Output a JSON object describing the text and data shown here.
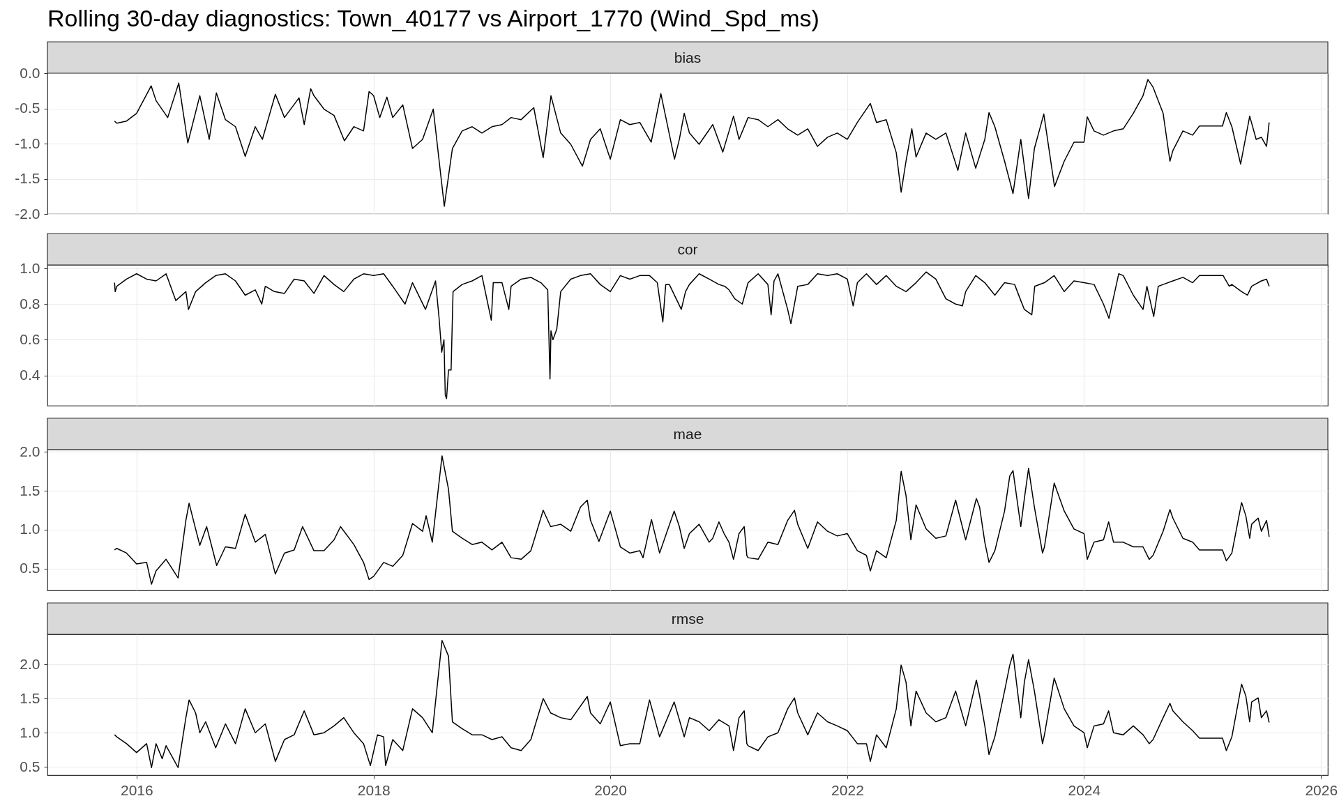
{
  "chart_data": [
    {
      "type": "line",
      "title": "Rolling 30-day diagnostics: Town_40177 vs Airport_1770 (Wind_Spd_ms)",
      "subtitle": "bias",
      "grid": true,
      "tick_labels": "y",
      "xlim": [
        "2015-04-01",
        "2026-01-22"
      ],
      "xticks": [
        "2016",
        "2018",
        "2020",
        "2022",
        "2024",
        "2026"
      ],
      "ylim": [
        -2.0,
        0.0
      ],
      "yticks": [
        {
          "value": -2.0,
          "label": "-2.0"
        },
        -1.5,
        {
          "value": -1.0,
          "label": "-1.0"
        },
        -0.5,
        {
          "value": 0.0,
          "label": "0.0"
        }
      ],
      "x": [
        "2015-10-25",
        "2015-11-01",
        "2015-12-01",
        "2016-01-01",
        "2016-02-15",
        "2016-03-01",
        "2016-04-06",
        "2016-05-10",
        "2016-06-07",
        "2016-07-14",
        "2016-08-12",
        "2016-09-03",
        "2016-10-01",
        "2016-11-01",
        "2016-12-01",
        "2017-01-01",
        "2017-01-23",
        "2017-03-04",
        "2017-04-01",
        "2017-05-16",
        "2017-06-01",
        "2017-06-21",
        "2017-07-01",
        "2017-08-01",
        "2017-09-01",
        "2017-10-03",
        "2017-11-01",
        "2017-12-01",
        "2017-12-18",
        "2018-01-01",
        "2018-01-20",
        "2018-02-11",
        "2018-03-01",
        "2018-04-01",
        "2018-05-01",
        "2018-06-01",
        "2018-07-04",
        "2018-08-07",
        "2018-09-01",
        "2018-10-01",
        "2018-11-01",
        "2018-12-01",
        "2019-01-01",
        "2019-02-01",
        "2019-03-01",
        "2019-04-01",
        "2019-05-10",
        "2019-06-08",
        "2019-07-02",
        "2019-08-01",
        "2019-09-01",
        "2019-10-07",
        "2019-11-01",
        "2019-12-01",
        "2020-01-01",
        "2020-02-01",
        "2020-03-01",
        "2020-04-01",
        "2020-05-06",
        "2020-06-05",
        "2020-07-17",
        "2020-08-01",
        "2020-08-16",
        "2020-09-01",
        "2020-10-01",
        "2020-11-12",
        "2020-12-13",
        "2021-01-15",
        "2021-02-01",
        "2021-03-01",
        "2021-04-01",
        "2021-05-01",
        "2021-06-01",
        "2021-07-01",
        "2021-08-01",
        "2021-09-01",
        "2021-10-01",
        "2021-11-01",
        "2021-12-01",
        "2022-01-01",
        "2022-02-01",
        "2022-03-13",
        "2022-04-01",
        "2022-05-01",
        "2022-06-01",
        "2022-06-16",
        "2022-07-01",
        "2022-07-19",
        "2022-08-01",
        "2022-09-01",
        "2022-10-01",
        "2022-11-01",
        "2022-12-08",
        "2023-01-01",
        "2023-02-01",
        "2023-03-01",
        "2023-03-14",
        "2023-04-01",
        "2023-05-01",
        "2023-05-27",
        "2023-06-20",
        "2023-07-14",
        "2023-08-01",
        "2023-08-30",
        "2023-10-02",
        "2023-11-01",
        "2023-12-01",
        "2024-01-01",
        "2024-01-11",
        "2024-02-01",
        "2024-03-01",
        "2024-04-01",
        "2024-05-01",
        "2024-06-01",
        "2024-07-01",
        "2024-07-16",
        "2024-08-01",
        "2024-09-01",
        "2024-09-22",
        "2024-10-01",
        "2024-11-01",
        "2024-12-01",
        "2024-12-22",
        "2025-03-03",
        "2025-03-15",
        "2025-04-01",
        "2025-04-28",
        "2025-05-26",
        "2025-06-15",
        "2025-07-01",
        "2025-07-17",
        "2025-07-25"
      ],
      "series": [
        {
          "color": "#000000",
          "values": [
            -0.68,
            -0.71,
            -0.68,
            -0.57,
            -0.18,
            -0.39,
            -0.63,
            -0.14,
            -0.99,
            -0.32,
            -0.94,
            -0.28,
            -0.66,
            -0.76,
            -1.18,
            -0.76,
            -0.94,
            -0.3,
            -0.63,
            -0.35,
            -0.73,
            -0.22,
            -0.32,
            -0.51,
            -0.6,
            -0.96,
            -0.76,
            -0.82,
            -0.26,
            -0.32,
            -0.63,
            -0.34,
            -0.63,
            -0.45,
            -1.07,
            -0.94,
            -0.51,
            -1.89,
            -1.07,
            -0.82,
            -0.76,
            -0.85,
            -0.76,
            -0.73,
            -0.63,
            -0.66,
            -0.49,
            -1.2,
            -0.32,
            -0.85,
            -1.01,
            -1.32,
            -0.94,
            -0.79,
            -1.22,
            -0.66,
            -0.73,
            -0.7,
            -0.98,
            -0.29,
            -1.22,
            -0.94,
            -0.57,
            -0.85,
            -1.01,
            -0.73,
            -1.12,
            -0.61,
            -0.94,
            -0.63,
            -0.66,
            -0.76,
            -0.66,
            -0.79,
            -0.88,
            -0.79,
            -1.04,
            -0.91,
            -0.85,
            -0.94,
            -0.7,
            -0.43,
            -0.7,
            -0.66,
            -1.13,
            -1.69,
            -1.25,
            -0.79,
            -1.19,
            -0.85,
            -0.94,
            -0.85,
            -1.38,
            -0.85,
            -1.35,
            -0.94,
            -0.56,
            -0.76,
            -1.25,
            -1.71,
            -0.94,
            -1.78,
            -1.07,
            -0.58,
            -1.61,
            -1.25,
            -0.98,
            -0.98,
            -0.62,
            -0.82,
            -0.88,
            -0.82,
            -0.79,
            -0.57,
            -0.32,
            -0.09,
            -0.2,
            -0.57,
            -1.25,
            -1.1,
            -0.82,
            -0.88,
            -0.75,
            -0.75,
            -0.56,
            -0.76,
            -1.29,
            -0.61,
            -0.94,
            -0.91,
            -1.04,
            -0.7
          ]
        }
      ]
    },
    {
      "type": "line",
      "subtitle": "cor",
      "grid": true,
      "tick_labels": "y",
      "xlim": [
        "2015-04-01",
        "2026-01-22"
      ],
      "xticks": [
        "2016",
        "2018",
        "2020",
        "2022",
        "2024",
        "2026"
      ],
      "ylim": [
        0.23,
        1.02
      ],
      "yticks": [
        0.4,
        0.6,
        0.8,
        {
          "value": 1.0,
          "label": "1.0"
        }
      ],
      "x": [
        "2015-10-25",
        "2015-10-27",
        "2015-11-01",
        "2015-12-01",
        "2016-01-01",
        "2016-02-01",
        "2016-03-01",
        "2016-04-01",
        "2016-05-01",
        "2016-06-01",
        "2016-06-09",
        "2016-07-01",
        "2016-08-01",
        "2016-09-01",
        "2016-10-01",
        "2016-11-01",
        "2016-12-01",
        "2017-01-01",
        "2017-01-21",
        "2017-02-01",
        "2017-03-01",
        "2017-04-01",
        "2017-05-01",
        "2017-06-01",
        "2017-07-01",
        "2017-08-01",
        "2017-09-01",
        "2017-10-01",
        "2017-11-01",
        "2017-12-01",
        "2018-01-01",
        "2018-02-01",
        "2018-03-01",
        "2018-04-08",
        "2018-05-01",
        "2018-06-10",
        "2018-07-11",
        "2018-07-22",
        "2018-07-30",
        "2018-08-06",
        "2018-08-10",
        "2018-08-14",
        "2018-08-20",
        "2018-08-28",
        "2018-09-03",
        "2018-10-01",
        "2018-11-01",
        "2018-12-01",
        "2018-12-30",
        "2019-01-05",
        "2019-02-01",
        "2019-02-22",
        "2019-03-01",
        "2019-04-01",
        "2019-05-01",
        "2019-06-01",
        "2019-06-22",
        "2019-06-29",
        "2019-07-02",
        "2019-07-08",
        "2019-07-20",
        "2019-08-01",
        "2019-09-01",
        "2019-10-01",
        "2019-11-01",
        "2019-12-01",
        "2020-01-01",
        "2020-02-01",
        "2020-03-01",
        "2020-04-01",
        "2020-05-01",
        "2020-05-25",
        "2020-06-11",
        "2020-06-20",
        "2020-07-01",
        "2020-08-07",
        "2020-08-20",
        "2020-09-01",
        "2020-10-01",
        "2020-11-01",
        "2020-12-01",
        "2020-12-19",
        "2021-01-01",
        "2021-01-19",
        "2021-02-11",
        "2021-03-01",
        "2021-04-01",
        "2021-05-01",
        "2021-05-11",
        "2021-05-20",
        "2021-06-01",
        "2021-07-01",
        "2021-07-11",
        "2021-08-01",
        "2021-09-01",
        "2021-10-01",
        "2021-11-01",
        "2021-12-01",
        "2022-01-01",
        "2022-01-19",
        "2022-02-01",
        "2022-03-01",
        "2022-04-01",
        "2022-05-01",
        "2022-06-01",
        "2022-07-01",
        "2022-08-01",
        "2022-09-01",
        "2022-10-01",
        "2022-11-01",
        "2022-12-01",
        "2022-12-22",
        "2023-01-01",
        "2023-02-01",
        "2023-03-01",
        "2023-04-01",
        "2023-05-01",
        "2023-06-01",
        "2023-06-20",
        "2023-07-01",
        "2023-07-24",
        "2023-08-02",
        "2023-09-01",
        "2023-10-01",
        "2023-11-01",
        "2023-12-01",
        "2024-01-01",
        "2024-02-01",
        "2024-03-01",
        "2024-03-18",
        "2024-04-17",
        "2024-05-01",
        "2024-06-01",
        "2024-07-01",
        "2024-07-13",
        "2024-08-03",
        "2024-08-17",
        "2024-09-01",
        "2024-10-01",
        "2024-11-01",
        "2024-12-01",
        "2024-12-22",
        "2025-03-05",
        "2025-03-24",
        "2025-04-01",
        "2025-05-01",
        "2025-05-19",
        "2025-06-01",
        "2025-07-01",
        "2025-07-17",
        "2025-07-25"
      ],
      "series": [
        {
          "color": "#000000",
          "values": [
            0.92,
            0.87,
            0.9,
            0.94,
            0.97,
            0.94,
            0.93,
            0.97,
            0.82,
            0.87,
            0.77,
            0.87,
            0.92,
            0.96,
            0.97,
            0.93,
            0.85,
            0.88,
            0.8,
            0.9,
            0.87,
            0.86,
            0.94,
            0.93,
            0.86,
            0.96,
            0.91,
            0.87,
            0.94,
            0.97,
            0.96,
            0.97,
            0.9,
            0.8,
            0.92,
            0.77,
            0.93,
            0.72,
            0.53,
            0.6,
            0.29,
            0.27,
            0.43,
            0.43,
            0.87,
            0.91,
            0.93,
            0.96,
            0.71,
            0.92,
            0.92,
            0.77,
            0.9,
            0.94,
            0.95,
            0.92,
            0.88,
            0.38,
            0.65,
            0.6,
            0.66,
            0.87,
            0.94,
            0.96,
            0.97,
            0.91,
            0.87,
            0.96,
            0.94,
            0.96,
            0.96,
            0.92,
            0.7,
            0.91,
            0.91,
            0.77,
            0.87,
            0.91,
            0.97,
            0.94,
            0.91,
            0.9,
            0.88,
            0.83,
            0.8,
            0.92,
            0.97,
            0.91,
            0.74,
            0.93,
            0.97,
            0.77,
            0.69,
            0.9,
            0.91,
            0.97,
            0.96,
            0.97,
            0.94,
            0.79,
            0.92,
            0.97,
            0.91,
            0.96,
            0.9,
            0.87,
            0.92,
            0.98,
            0.94,
            0.83,
            0.8,
            0.79,
            0.87,
            0.96,
            0.92,
            0.85,
            0.92,
            0.91,
            0.82,
            0.77,
            0.74,
            0.9,
            0.92,
            0.96,
            0.87,
            0.93,
            0.92,
            0.91,
            0.8,
            0.72,
            0.97,
            0.96,
            0.85,
            0.77,
            0.9,
            0.73,
            0.9,
            0.91,
            0.93,
            0.95,
            0.92,
            0.96,
            0.96,
            0.9,
            0.91,
            0.87,
            0.85,
            0.9,
            0.93,
            0.94,
            0.9
          ]
        }
      ]
    },
    {
      "type": "line",
      "subtitle": "mae",
      "grid": true,
      "tick_labels": "y",
      "xlim": [
        "2015-04-01",
        "2026-01-22"
      ],
      "xticks": [
        "2016",
        "2018",
        "2020",
        "2022",
        "2024",
        "2026"
      ],
      "ylim": [
        0.22,
        2.03
      ],
      "yticks": [
        0.5,
        {
          "value": 1.0,
          "label": "1.0"
        },
        1.5,
        {
          "value": 2.0,
          "label": "2.0"
        }
      ],
      "x": [
        "2015-10-25",
        "2015-11-01",
        "2015-12-01",
        "2016-01-01",
        "2016-02-01",
        "2016-02-16",
        "2016-03-01",
        "2016-04-01",
        "2016-05-08",
        "2016-06-01",
        "2016-06-11",
        "2016-07-01",
        "2016-07-14",
        "2016-08-04",
        "2016-09-04",
        "2016-10-01",
        "2016-11-01",
        "2016-12-01",
        "2017-01-01",
        "2017-02-01",
        "2017-03-04",
        "2017-04-01",
        "2017-05-01",
        "2017-05-27",
        "2017-07-01",
        "2017-08-01",
        "2017-09-01",
        "2017-09-21",
        "2017-11-01",
        "2017-12-01",
        "2017-12-18",
        "2018-01-01",
        "2018-02-01",
        "2018-03-01",
        "2018-04-01",
        "2018-05-01",
        "2018-06-01",
        "2018-06-12",
        "2018-07-01",
        "2018-07-31",
        "2018-08-20",
        "2018-09-01",
        "2018-10-01",
        "2018-11-01",
        "2018-12-01",
        "2019-01-01",
        "2019-02-01",
        "2019-03-01",
        "2019-04-01",
        "2019-05-01",
        "2019-06-08",
        "2019-07-01",
        "2019-08-01",
        "2019-09-01",
        "2019-10-01",
        "2019-10-22",
        "2019-11-01",
        "2019-11-27",
        "2020-01-01",
        "2020-02-01",
        "2020-03-01",
        "2020-04-01",
        "2020-04-11",
        "2020-05-07",
        "2020-06-01",
        "2020-07-16",
        "2020-08-01",
        "2020-08-16",
        "2020-09-01",
        "2020-10-01",
        "2020-11-01",
        "2020-11-12",
        "2020-12-01",
        "2020-12-17",
        "2021-01-01",
        "2021-01-15",
        "2021-02-01",
        "2021-02-17",
        "2021-02-25",
        "2021-03-01",
        "2021-04-01",
        "2021-05-01",
        "2021-06-01",
        "2021-07-01",
        "2021-07-22",
        "2021-08-01",
        "2021-09-01",
        "2021-10-01",
        "2021-11-01",
        "2021-12-01",
        "2022-01-01",
        "2022-02-01",
        "2022-03-01",
        "2022-03-13",
        "2022-04-01",
        "2022-05-01",
        "2022-06-01",
        "2022-06-16",
        "2022-07-01",
        "2022-07-16",
        "2022-08-01",
        "2022-09-01",
        "2022-10-01",
        "2022-11-01",
        "2022-12-01",
        "2023-01-01",
        "2023-02-03",
        "2023-02-13",
        "2023-03-01",
        "2023-03-14",
        "2023-04-01",
        "2023-05-01",
        "2023-05-17",
        "2023-05-27",
        "2023-06-20",
        "2023-07-01",
        "2023-07-14",
        "2023-08-01",
        "2023-08-26",
        "2023-09-01",
        "2023-10-01",
        "2023-11-01",
        "2023-12-01",
        "2024-01-01",
        "2024-01-11",
        "2024-02-01",
        "2024-03-01",
        "2024-03-17",
        "2024-04-01",
        "2024-05-01",
        "2024-06-01",
        "2024-07-01",
        "2024-07-20",
        "2024-08-01",
        "2024-09-01",
        "2024-09-22",
        "2024-10-01",
        "2024-11-01",
        "2024-12-01",
        "2024-12-22",
        "2025-03-03",
        "2025-03-15",
        "2025-04-01",
        "2025-05-01",
        "2025-05-14",
        "2025-05-26",
        "2025-06-01",
        "2025-06-21",
        "2025-07-01",
        "2025-07-17",
        "2025-07-25"
      ],
      "series": [
        {
          "color": "#000000",
          "values": [
            0.74,
            0.76,
            0.7,
            0.56,
            0.58,
            0.3,
            0.47,
            0.62,
            0.38,
            1.12,
            1.34,
            1.01,
            0.8,
            1.04,
            0.54,
            0.78,
            0.76,
            1.2,
            0.84,
            0.94,
            0.43,
            0.7,
            0.74,
            1.04,
            0.73,
            0.73,
            0.87,
            1.04,
            0.81,
            0.58,
            0.36,
            0.4,
            0.58,
            0.53,
            0.67,
            1.08,
            0.98,
            1.18,
            0.84,
            1.95,
            1.52,
            0.98,
            0.89,
            0.81,
            0.84,
            0.74,
            0.84,
            0.64,
            0.62,
            0.73,
            1.25,
            1.04,
            1.07,
            0.98,
            1.29,
            1.38,
            1.12,
            0.85,
            1.24,
            0.78,
            0.7,
            0.73,
            0.64,
            1.13,
            0.7,
            1.24,
            1.04,
            0.76,
            0.95,
            1.07,
            0.84,
            0.89,
            1.1,
            0.95,
            0.84,
            0.62,
            0.95,
            1.04,
            0.67,
            0.64,
            0.62,
            0.84,
            0.81,
            1.12,
            1.25,
            1.07,
            0.76,
            1.1,
            0.98,
            0.92,
            0.95,
            0.73,
            0.67,
            0.47,
            0.73,
            0.64,
            1.12,
            1.75,
            1.44,
            0.87,
            1.32,
            1.01,
            0.89,
            0.92,
            1.38,
            0.87,
            1.4,
            1.29,
            0.84,
            0.58,
            0.73,
            1.24,
            1.69,
            1.76,
            1.04,
            1.4,
            1.79,
            1.29,
            0.7,
            0.78,
            1.6,
            1.24,
            1.01,
            0.95,
            0.62,
            0.84,
            0.87,
            1.1,
            0.84,
            0.84,
            0.78,
            0.78,
            0.62,
            0.67,
            0.98,
            1.26,
            1.15,
            0.89,
            0.84,
            0.74,
            0.74,
            0.6,
            0.7,
            1.35,
            1.18,
            0.89,
            1.07,
            1.15,
            0.98,
            1.12,
            0.91
          ]
        }
      ]
    },
    {
      "type": "line",
      "subtitle": "rmse",
      "grid": true,
      "xlim": [
        "2015-04-01",
        "2026-01-22"
      ],
      "xticks": [
        "2016",
        "2018",
        "2020",
        "2022",
        "2024",
        "2026"
      ],
      "ylim": [
        0.38,
        2.44
      ],
      "yticks": [
        0.5,
        {
          "value": 1.0,
          "label": "1.0"
        },
        1.5,
        {
          "value": 2.0,
          "label": "2.0"
        }
      ],
      "x": [
        "2015-10-25",
        "2015-11-01",
        "2015-12-01",
        "2016-01-01",
        "2016-02-01",
        "2016-02-16",
        "2016-03-01",
        "2016-03-20",
        "2016-04-01",
        "2016-05-08",
        "2016-06-01",
        "2016-06-11",
        "2016-07-01",
        "2016-07-14",
        "2016-08-01",
        "2016-09-01",
        "2016-10-01",
        "2016-11-01",
        "2016-12-01",
        "2017-01-01",
        "2017-02-01",
        "2017-03-04",
        "2017-04-01",
        "2017-05-01",
        "2017-06-01",
        "2017-07-01",
        "2017-08-01",
        "2017-09-01",
        "2017-10-01",
        "2017-11-01",
        "2017-12-01",
        "2017-12-22",
        "2018-01-13",
        "2018-02-01",
        "2018-02-07",
        "2018-03-01",
        "2018-04-01",
        "2018-05-01",
        "2018-06-01",
        "2018-07-01",
        "2018-07-31",
        "2018-08-20",
        "2018-09-01",
        "2018-10-01",
        "2018-11-01",
        "2018-12-01",
        "2019-01-01",
        "2019-02-01",
        "2019-03-01",
        "2019-04-01",
        "2019-05-01",
        "2019-06-08",
        "2019-07-01",
        "2019-08-01",
        "2019-09-01",
        "2019-10-22",
        "2019-11-01",
        "2019-12-01",
        "2020-01-01",
        "2020-02-01",
        "2020-03-01",
        "2020-04-01",
        "2020-05-01",
        "2020-06-01",
        "2020-07-16",
        "2020-08-01",
        "2020-08-16",
        "2020-09-01",
        "2020-10-01",
        "2020-11-01",
        "2020-12-01",
        "2021-01-01",
        "2021-01-15",
        "2021-02-01",
        "2021-02-17",
        "2021-02-25",
        "2021-03-01",
        "2021-04-01",
        "2021-05-01",
        "2021-06-01",
        "2021-07-01",
        "2021-07-22",
        "2021-08-01",
        "2021-09-01",
        "2021-10-01",
        "2021-11-01",
        "2021-12-01",
        "2022-01-01",
        "2022-02-01",
        "2022-03-01",
        "2022-03-13",
        "2022-04-01",
        "2022-05-01",
        "2022-06-01",
        "2022-06-16",
        "2022-07-01",
        "2022-07-16",
        "2022-08-01",
        "2022-09-01",
        "2022-10-01",
        "2022-11-01",
        "2022-12-01",
        "2023-01-01",
        "2023-02-03",
        "2023-02-13",
        "2023-03-01",
        "2023-03-14",
        "2023-04-01",
        "2023-05-01",
        "2023-05-17",
        "2023-05-27",
        "2023-06-20",
        "2023-07-01",
        "2023-07-14",
        "2023-08-01",
        "2023-08-26",
        "2023-09-01",
        "2023-10-01",
        "2023-11-01",
        "2023-12-01",
        "2024-01-01",
        "2024-01-11",
        "2024-02-01",
        "2024-03-01",
        "2024-03-17",
        "2024-04-01",
        "2024-05-01",
        "2024-06-01",
        "2024-07-01",
        "2024-07-20",
        "2024-08-01",
        "2024-09-01",
        "2024-09-22",
        "2024-10-01",
        "2024-11-01",
        "2024-12-01",
        "2024-12-22",
        "2025-03-03",
        "2025-03-15",
        "2025-04-01",
        "2025-05-01",
        "2025-05-14",
        "2025-05-26",
        "2025-06-01",
        "2025-06-21",
        "2025-07-01",
        "2025-07-17",
        "2025-07-25"
      ],
      "series": [
        {
          "color": "#000000",
          "values": [
            0.97,
            0.94,
            0.84,
            0.71,
            0.84,
            0.49,
            0.84,
            0.62,
            0.81,
            0.49,
            1.22,
            1.48,
            1.29,
            1.0,
            1.16,
            0.78,
            1.13,
            0.84,
            1.35,
            1.0,
            1.13,
            0.58,
            0.9,
            0.97,
            1.32,
            0.97,
            1.0,
            1.1,
            1.22,
            1.0,
            0.84,
            0.52,
            0.97,
            0.94,
            0.52,
            0.9,
            0.74,
            1.35,
            1.22,
            1.0,
            2.35,
            2.12,
            1.16,
            1.06,
            0.97,
            0.97,
            0.9,
            0.94,
            0.78,
            0.74,
            0.9,
            1.5,
            1.29,
            1.22,
            1.19,
            1.53,
            1.29,
            1.13,
            1.45,
            0.81,
            0.84,
            0.84,
            1.48,
            0.94,
            1.45,
            1.19,
            0.94,
            1.22,
            1.16,
            1.03,
            1.19,
            1.1,
            0.74,
            1.22,
            1.32,
            0.84,
            0.81,
            0.74,
            0.94,
            1.0,
            1.35,
            1.51,
            1.29,
            0.97,
            1.29,
            1.16,
            1.1,
            1.03,
            0.84,
            0.84,
            0.58,
            0.97,
            0.78,
            1.35,
            1.99,
            1.74,
            1.1,
            1.61,
            1.29,
            1.16,
            1.22,
            1.61,
            1.1,
            1.77,
            1.54,
            1.1,
            0.68,
            0.94,
            1.61,
            1.99,
            2.15,
            1.22,
            1.74,
            2.07,
            1.61,
            0.84,
            0.97,
            1.8,
            1.35,
            1.1,
            1.0,
            0.78,
            1.1,
            1.13,
            1.32,
            1.0,
            0.97,
            1.1,
            0.97,
            0.84,
            0.9,
            1.22,
            1.43,
            1.32,
            1.16,
            1.03,
            0.92,
            0.92,
            0.74,
            0.94,
            1.71,
            1.54,
            1.16,
            1.45,
            1.51,
            1.22,
            1.32,
            1.15
          ]
        }
      ]
    }
  ]
}
